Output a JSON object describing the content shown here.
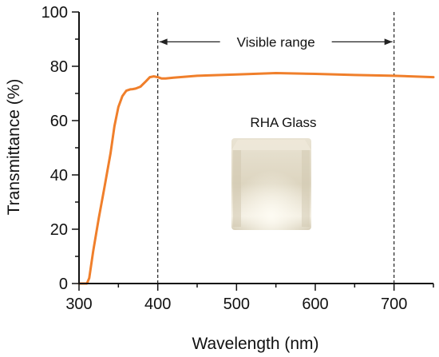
{
  "chart_data": {
    "type": "line",
    "title": "",
    "xlabel": "Wavelength (nm)",
    "ylabel": "Transmittance (%)",
    "xlim": [
      300,
      750
    ],
    "ylim": [
      0,
      100
    ],
    "x_ticks": [
      300,
      400,
      500,
      600,
      700
    ],
    "y_ticks": [
      0,
      20,
      40,
      60,
      80,
      100
    ],
    "x_tick_labels": [
      "300",
      "400",
      "500",
      "600",
      "700"
    ],
    "y_tick_labels": [
      "0",
      "20",
      "40",
      "60",
      "80",
      "100"
    ],
    "grid": false,
    "legend": "none",
    "series": [
      {
        "color": "#f07f2b",
        "x": [
          300,
          305,
          310,
          313,
          318,
          325,
          332,
          340,
          345,
          350,
          355,
          360,
          365,
          368,
          372,
          378,
          385,
          390,
          395,
          400,
          405,
          410,
          420,
          450,
          500,
          550,
          600,
          650,
          700,
          750
        ],
        "y": [
          0,
          0,
          0,
          2,
          12,
          24,
          35,
          48,
          58,
          65,
          69,
          71,
          71.5,
          71.6,
          71.8,
          72.5,
          74.5,
          76,
          76.3,
          76,
          75.5,
          75.5,
          75.8,
          76.5,
          77,
          77.5,
          77.2,
          76.8,
          76.5,
          76
        ]
      }
    ],
    "reference_lines": [
      {
        "axis": "x",
        "value": 400,
        "style": "dashed"
      },
      {
        "axis": "x",
        "value": 700,
        "style": "dashed"
      }
    ],
    "annotations": {
      "range_label": "Visible range",
      "range_from": 400,
      "range_to": 700,
      "range_y": 89,
      "sample_label": "RHA Glass"
    }
  }
}
